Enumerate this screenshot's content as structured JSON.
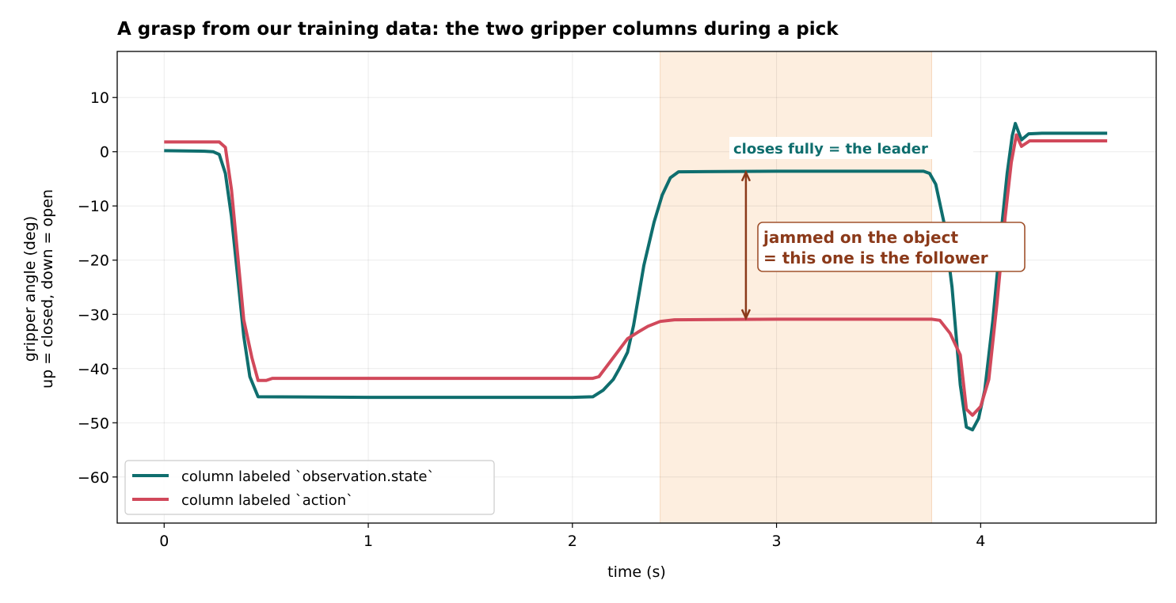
{
  "chart_data": {
    "type": "line",
    "title": "A grasp from our training data: the two gripper columns during a pick",
    "xlabel": "time (s)",
    "ylabel_line1": "gripper angle (deg)",
    "ylabel_line2": "up = closed, down = open",
    "xlim": [
      -0.23,
      4.86
    ],
    "ylim": [
      -68.5,
      18.5
    ],
    "x_ticks": [
      0,
      1,
      2,
      3,
      4
    ],
    "y_ticks": [
      10,
      0,
      -10,
      -20,
      -30,
      -40,
      -50,
      -60
    ],
    "y_tick_labels": [
      "10",
      "0",
      "−10",
      "−20",
      "−30",
      "−40",
      "−50",
      "−60"
    ],
    "grid": true,
    "legend_position": "lower-left",
    "highlight_span": {
      "x0": 2.43,
      "x1": 3.76,
      "color": "#fdebd9"
    },
    "series": [
      {
        "name": "column labeled `observation.state`",
        "color": "#0f6e6e",
        "points": [
          [
            0,
            0.2
          ],
          [
            0.2,
            0.1
          ],
          [
            0.24,
            0
          ],
          [
            0.27,
            -0.5
          ],
          [
            0.3,
            -4
          ],
          [
            0.33,
            -12
          ],
          [
            0.36,
            -23
          ],
          [
            0.39,
            -34
          ],
          [
            0.42,
            -41.5
          ],
          [
            0.46,
            -45.2
          ],
          [
            1.0,
            -45.3
          ],
          [
            2.0,
            -45.3
          ],
          [
            2.1,
            -45.2
          ],
          [
            2.15,
            -44
          ],
          [
            2.2,
            -42
          ],
          [
            2.23,
            -40
          ],
          [
            2.27,
            -37
          ],
          [
            2.3,
            -32
          ],
          [
            2.35,
            -21
          ],
          [
            2.4,
            -13
          ],
          [
            2.44,
            -8
          ],
          [
            2.48,
            -4.8
          ],
          [
            2.52,
            -3.7
          ],
          [
            3.0,
            -3.6
          ],
          [
            3.72,
            -3.6
          ],
          [
            3.75,
            -4
          ],
          [
            3.78,
            -6
          ],
          [
            3.82,
            -13
          ],
          [
            3.86,
            -25
          ],
          [
            3.9,
            -43
          ],
          [
            3.93,
            -50.8
          ],
          [
            3.96,
            -51.3
          ],
          [
            3.99,
            -49.2
          ],
          [
            4.02,
            -44
          ],
          [
            4.06,
            -31
          ],
          [
            4.1,
            -15
          ],
          [
            4.13,
            -4
          ],
          [
            4.155,
            3
          ],
          [
            4.17,
            5.2
          ],
          [
            4.2,
            2.2
          ],
          [
            4.235,
            3.3
          ],
          [
            4.3,
            3.4
          ],
          [
            4.62,
            3.4
          ]
        ]
      },
      {
        "name": "column labeled `action`",
        "color": "#d1495b",
        "points": [
          [
            0,
            1.8
          ],
          [
            0.27,
            1.8
          ],
          [
            0.3,
            0.8
          ],
          [
            0.33,
            -7
          ],
          [
            0.36,
            -19
          ],
          [
            0.39,
            -31
          ],
          [
            0.43,
            -38
          ],
          [
            0.46,
            -42.2
          ],
          [
            0.5,
            -42.2
          ],
          [
            0.53,
            -41.8
          ],
          [
            1.0,
            -41.8
          ],
          [
            2.0,
            -41.8
          ],
          [
            2.1,
            -41.8
          ],
          [
            2.13,
            -41.5
          ],
          [
            2.17,
            -39.5
          ],
          [
            2.22,
            -37
          ],
          [
            2.27,
            -34.5
          ],
          [
            2.32,
            -33.3
          ],
          [
            2.37,
            -32.2
          ],
          [
            2.43,
            -31.3
          ],
          [
            2.5,
            -31
          ],
          [
            3.0,
            -30.9
          ],
          [
            3.76,
            -30.9
          ],
          [
            3.8,
            -31.1
          ],
          [
            3.85,
            -33.5
          ],
          [
            3.9,
            -37.5
          ],
          [
            3.93,
            -47.5
          ],
          [
            3.96,
            -48.6
          ],
          [
            4.0,
            -47
          ],
          [
            4.04,
            -42
          ],
          [
            4.08,
            -28
          ],
          [
            4.12,
            -12
          ],
          [
            4.15,
            -2
          ],
          [
            4.175,
            3.1
          ],
          [
            4.2,
            1
          ],
          [
            4.24,
            2
          ],
          [
            4.3,
            2
          ],
          [
            4.62,
            2
          ]
        ]
      }
    ],
    "annotations": {
      "leader_label": "closes fully = the leader",
      "follower_line1": "jammed on the object",
      "follower_line2": "= this one is the follower",
      "arrow": {
        "x": 2.85,
        "y_top": -3.8,
        "y_bottom": -30.7,
        "color": "#8b3a1a"
      }
    }
  }
}
